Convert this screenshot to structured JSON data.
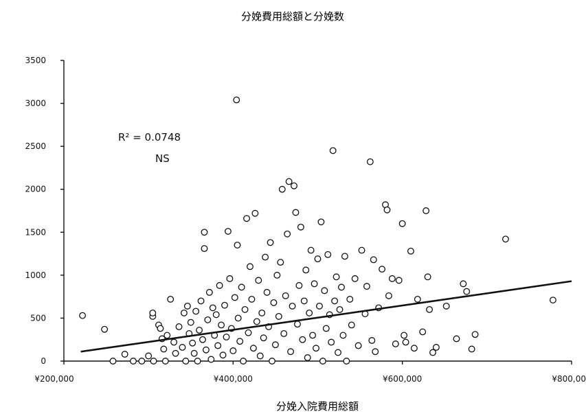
{
  "chart_data": {
    "type": "scatter",
    "title": "分娩費用総額と分娩数",
    "xlabel": "分娩入院費用総額",
    "ylabel": "",
    "xlim": [
      200000,
      800000
    ],
    "ylim": [
      0,
      3500
    ],
    "x_ticks": [
      "¥200,000",
      "¥400,000",
      "¥600,000",
      "¥800,000"
    ],
    "y_ticks": [
      "0",
      "500",
      "1000",
      "1500",
      "2000",
      "2500",
      "3000",
      "3500"
    ],
    "annotations": {
      "r2": "R² = 0.0748",
      "sig": "NS"
    },
    "trendline": {
      "x": [
        220000,
        800000
      ],
      "y": [
        110,
        930
      ]
    },
    "marker": "open-circle",
    "points": [
      [
        222000,
        530
      ],
      [
        248000,
        370
      ],
      [
        258000,
        0
      ],
      [
        272000,
        80
      ],
      [
        282000,
        0
      ],
      [
        292000,
        0
      ],
      [
        300000,
        60
      ],
      [
        305000,
        520
      ],
      [
        305000,
        560
      ],
      [
        306000,
        0
      ],
      [
        312000,
        420
      ],
      [
        314000,
        380
      ],
      [
        316000,
        260
      ],
      [
        318000,
        140
      ],
      [
        320000,
        0
      ],
      [
        322000,
        300
      ],
      [
        326000,
        720
      ],
      [
        330000,
        220
      ],
      [
        332000,
        90
      ],
      [
        336000,
        400
      ],
      [
        340000,
        160
      ],
      [
        342000,
        560
      ],
      [
        344000,
        0
      ],
      [
        346000,
        640
      ],
      [
        348000,
        320
      ],
      [
        350000,
        450
      ],
      [
        352000,
        210
      ],
      [
        354000,
        90
      ],
      [
        356000,
        580
      ],
      [
        358000,
        0
      ],
      [
        360000,
        360
      ],
      [
        362000,
        700
      ],
      [
        364000,
        250
      ],
      [
        366000,
        1500
      ],
      [
        366000,
        1310
      ],
      [
        368000,
        130
      ],
      [
        370000,
        480
      ],
      [
        372000,
        800
      ],
      [
        374000,
        20
      ],
      [
        376000,
        620
      ],
      [
        378000,
        300
      ],
      [
        380000,
        540
      ],
      [
        382000,
        180
      ],
      [
        384000,
        880
      ],
      [
        386000,
        420
      ],
      [
        388000,
        70
      ],
      [
        390000,
        650
      ],
      [
        392000,
        280
      ],
      [
        394000,
        1510
      ],
      [
        396000,
        960
      ],
      [
        398000,
        380
      ],
      [
        400000,
        120
      ],
      [
        402000,
        740
      ],
      [
        404000,
        3040
      ],
      [
        405000,
        1350
      ],
      [
        406000,
        500
      ],
      [
        408000,
        230
      ],
      [
        410000,
        860
      ],
      [
        412000,
        0
      ],
      [
        414000,
        600
      ],
      [
        416000,
        1660
      ],
      [
        418000,
        330
      ],
      [
        420000,
        1100
      ],
      [
        422000,
        720
      ],
      [
        424000,
        150
      ],
      [
        426000,
        1720
      ],
      [
        428000,
        460
      ],
      [
        430000,
        940
      ],
      [
        432000,
        60
      ],
      [
        434000,
        560
      ],
      [
        436000,
        270
      ],
      [
        438000,
        1210
      ],
      [
        440000,
        800
      ],
      [
        442000,
        400
      ],
      [
        444000,
        1380
      ],
      [
        446000,
        0
      ],
      [
        448000,
        680
      ],
      [
        450000,
        190
      ],
      [
        452000,
        1000
      ],
      [
        454000,
        520
      ],
      [
        456000,
        1150
      ],
      [
        458000,
        2000
      ],
      [
        460000,
        320
      ],
      [
        462000,
        760
      ],
      [
        464000,
        1480
      ],
      [
        466000,
        2090
      ],
      [
        468000,
        110
      ],
      [
        470000,
        640
      ],
      [
        472000,
        2040
      ],
      [
        474000,
        1730
      ],
      [
        476000,
        430
      ],
      [
        478000,
        880
      ],
      [
        480000,
        1560
      ],
      [
        482000,
        250
      ],
      [
        484000,
        700
      ],
      [
        486000,
        1060
      ],
      [
        488000,
        40
      ],
      [
        490000,
        560
      ],
      [
        492000,
        1290
      ],
      [
        494000,
        300
      ],
      [
        496000,
        900
      ],
      [
        498000,
        150
      ],
      [
        500000,
        1190
      ],
      [
        502000,
        640
      ],
      [
        504000,
        1620
      ],
      [
        506000,
        0
      ],
      [
        508000,
        820
      ],
      [
        510000,
        380
      ],
      [
        512000,
        1240
      ],
      [
        514000,
        540
      ],
      [
        516000,
        220
      ],
      [
        518000,
        2450
      ],
      [
        520000,
        700
      ],
      [
        522000,
        980
      ],
      [
        524000,
        100
      ],
      [
        526000,
        600
      ],
      [
        528000,
        860
      ],
      [
        530000,
        300
      ],
      [
        532000,
        1220
      ],
      [
        534000,
        0
      ],
      [
        538000,
        720
      ],
      [
        540000,
        420
      ],
      [
        544000,
        960
      ],
      [
        548000,
        180
      ],
      [
        552000,
        1290
      ],
      [
        556000,
        550
      ],
      [
        558000,
        870
      ],
      [
        562000,
        2320
      ],
      [
        564000,
        240
      ],
      [
        566000,
        1180
      ],
      [
        568000,
        110
      ],
      [
        572000,
        620
      ],
      [
        576000,
        1070
      ],
      [
        580000,
        1820
      ],
      [
        582000,
        1760
      ],
      [
        584000,
        760
      ],
      [
        588000,
        960
      ],
      [
        592000,
        200
      ],
      [
        596000,
        940
      ],
      [
        600000,
        1600
      ],
      [
        602000,
        300
      ],
      [
        604000,
        220
      ],
      [
        610000,
        1280
      ],
      [
        614000,
        150
      ],
      [
        618000,
        720
      ],
      [
        624000,
        340
      ],
      [
        628000,
        1750
      ],
      [
        630000,
        980
      ],
      [
        632000,
        600
      ],
      [
        636000,
        100
      ],
      [
        640000,
        160
      ],
      [
        652000,
        640
      ],
      [
        664000,
        260
      ],
      [
        672000,
        900
      ],
      [
        676000,
        810
      ],
      [
        682000,
        140
      ],
      [
        686000,
        310
      ],
      [
        722000,
        1420
      ],
      [
        778000,
        710
      ]
    ]
  }
}
